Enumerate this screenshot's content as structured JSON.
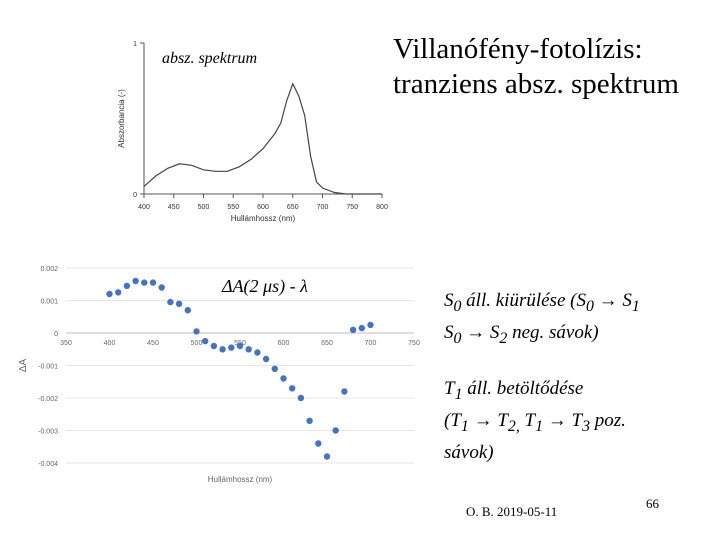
{
  "title": {
    "line1": "Villanófény-fotolízis:",
    "line2": "tranziens absz. spektrum"
  },
  "spectrum_label": "absz. spektrum",
  "delta_a_label": "ΔA(2 μs) - λ",
  "s0_text": {
    "line1": {
      "a": "S",
      "a_sub": "0",
      "b": " áll. kiürülése (S",
      "b_sub": "0",
      "c": " → S",
      "c_sub": "1"
    },
    "line2": {
      "a": "S",
      "a_sub": "0",
      "b": " → S",
      "b_sub": "2",
      "c": " neg. sávok)"
    }
  },
  "t1_text": {
    "line1": {
      "a": "T",
      "a_sub": "1",
      "b": " áll. betöltődése"
    },
    "line2": {
      "a": "(T",
      "a_sub": "1",
      "b": " → T",
      "b_sub": "2,",
      "c": " T",
      "c_sub": "1",
      "d": " → T",
      "d_sub": "3",
      "e": " poz."
    },
    "line3": "sávok)"
  },
  "footer": "O. B. 2019-05-11",
  "page_number": "66",
  "chart_data": [
    {
      "type": "line",
      "xlabel": "Hullámhossz (nm)",
      "ylabel": "Abszorbancia (-)",
      "xlim": [
        400,
        800
      ],
      "ylim": [
        0,
        1
      ],
      "x_ticks": [
        "400",
        "450",
        "500",
        "550",
        "600",
        "650",
        "700",
        "750",
        "800"
      ],
      "y_ticks": [
        "0",
        "1"
      ],
      "series": [
        {
          "x": [
            400,
            420,
            440,
            460,
            480,
            500,
            520,
            540,
            560,
            580,
            600,
            620,
            630,
            640,
            650,
            660,
            670,
            680,
            690,
            700,
            720,
            740,
            760,
            780,
            800
          ],
          "y": [
            0.05,
            0.12,
            0.17,
            0.2,
            0.19,
            0.16,
            0.15,
            0.15,
            0.18,
            0.23,
            0.3,
            0.4,
            0.47,
            0.62,
            0.73,
            0.65,
            0.52,
            0.25,
            0.08,
            0.04,
            0.01,
            0.0,
            0.0,
            0.0,
            0.0
          ]
        }
      ],
      "color": "#444444"
    },
    {
      "type": "scatter",
      "xlabel": "Hullámhossz (nm)",
      "ylabel": "ΔA",
      "xlim": [
        350,
        750
      ],
      "ylim": [
        -0.004,
        0.002
      ],
      "x_ticks": [
        "350",
        "400",
        "450",
        "500",
        "550",
        "600",
        "650",
        "700",
        "750"
      ],
      "y_ticks": [
        "0.002",
        "0.001",
        "0",
        "-0.001",
        "-0.002",
        "-0.003",
        "-0.004"
      ],
      "series": [
        {
          "x": [
            400,
            410,
            420,
            430,
            440,
            450,
            460,
            470,
            480,
            490,
            500,
            510,
            520,
            530,
            540,
            550,
            560,
            570,
            580,
            590,
            600,
            610,
            620,
            630,
            640,
            650,
            660,
            670,
            680,
            690,
            700
          ],
          "y": [
            0.0012,
            0.00125,
            0.00145,
            0.0016,
            0.00155,
            0.00155,
            0.0014,
            0.00095,
            0.0009,
            0.0007,
            5e-05,
            -0.00025,
            -0.0004,
            -0.0005,
            -0.00045,
            -0.0004,
            -0.0005,
            -0.0006,
            -0.0008,
            -0.0011,
            -0.0014,
            -0.0017,
            -0.002,
            -0.0027,
            -0.0034,
            -0.0038,
            -0.003,
            -0.0018,
            0.0001,
            0.00015,
            0.00025
          ]
        }
      ],
      "color": "#4472c4"
    }
  ]
}
